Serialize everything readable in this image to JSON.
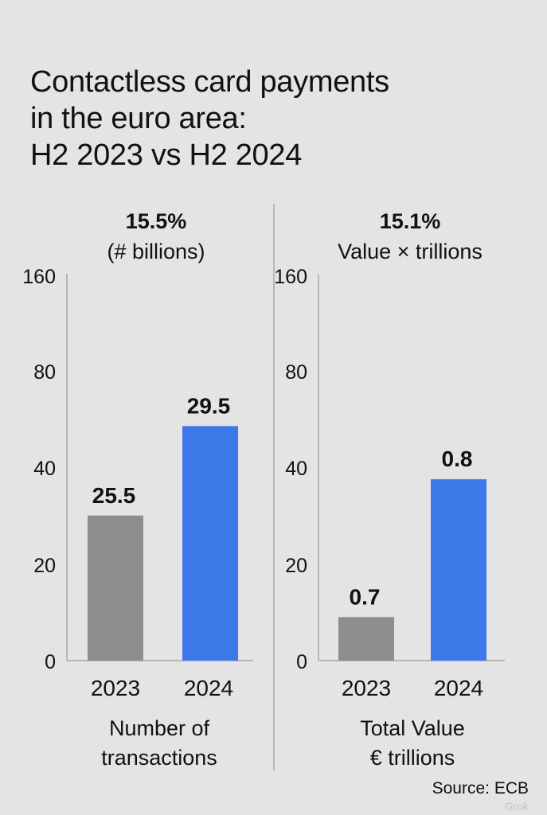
{
  "title_lines": [
    "Contactless card payments",
    "in the euro area:",
    "H2 2023 vs H2 2024"
  ],
  "source": "Source: ECB",
  "watermark": "Grok",
  "colors": {
    "bar_2023": "#8e8e8e",
    "bar_2024": "#3d78e8",
    "background": "#e4e4e4",
    "divider": "#a9a9a9"
  },
  "chart_data": [
    {
      "type": "bar",
      "headline": "15.5%",
      "subtitle": "(# billions)",
      "xlabel_lines": [
        "Number of",
        "transactions"
      ],
      "categories": [
        "2023",
        "2024"
      ],
      "values": [
        25.5,
        29.5
      ],
      "bar_heights": [
        60,
        97
      ],
      "data_labels": [
        "25.5",
        "29.5"
      ],
      "yticks": [
        "0",
        "20",
        "40",
        "80",
        "160"
      ],
      "ylim": [
        0,
        160
      ]
    },
    {
      "type": "bar",
      "headline": "15.1%",
      "subtitle": "Value × trillions",
      "xlabel_lines": [
        "Total Value",
        "€ trillions"
      ],
      "categories": [
        "2023",
        "2024"
      ],
      "values": [
        0.7,
        0.8
      ],
      "bar_heights": [
        18,
        75
      ],
      "data_labels": [
        "0.7",
        "0.8"
      ],
      "yticks": [
        "0",
        "20",
        "40",
        "80",
        "160"
      ],
      "ylim": [
        0,
        160
      ]
    }
  ]
}
